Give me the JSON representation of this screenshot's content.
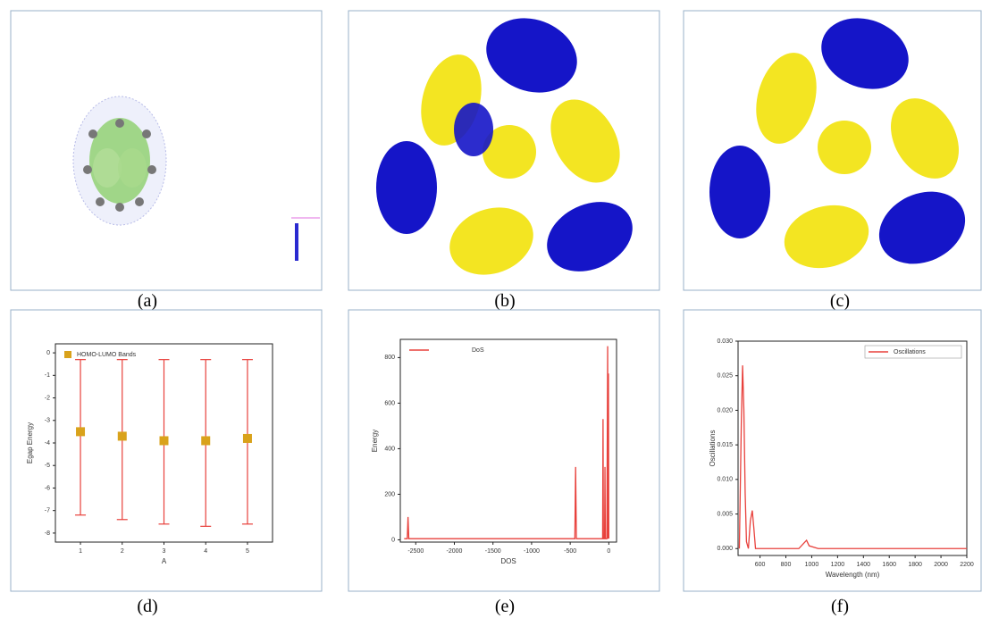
{
  "panel_labels": [
    "(a)",
    "(b)",
    "(c)",
    "(d)",
    "(e)",
    "(f)"
  ],
  "chart_data": [
    {
      "type": "errorbar",
      "xlabel": "A",
      "ylabel": "Egap Energy",
      "x": [
        1,
        2,
        3,
        4,
        5
      ],
      "xlim": [
        0.4,
        5.6
      ],
      "xticks": [
        1,
        2,
        3,
        4,
        5
      ],
      "ylim": [
        -8.4,
        0.4
      ],
      "yticks": [
        0,
        -1,
        -2,
        -3,
        -4,
        -5,
        -6,
        -7,
        -8
      ],
      "legend": "upper left",
      "error_color": "#e8413c",
      "series": [
        {
          "name": "HOMO-LUMO Bands",
          "color": "#d9a21b",
          "values": [
            -3.5,
            -3.7,
            -3.9,
            -3.9,
            -3.8
          ],
          "low": [
            -7.2,
            -7.4,
            -7.6,
            -7.7,
            -7.6
          ],
          "high": [
            -0.3,
            -0.3,
            -0.3,
            -0.3,
            -0.3
          ]
        }
      ]
    },
    {
      "type": "line",
      "xlabel": "DOS",
      "ylabel": "Energy",
      "x": [
        -2650,
        -2610,
        -2600,
        -2590,
        -460,
        -440,
        -430,
        -420,
        -100,
        -80,
        -75,
        -70,
        -55,
        -50,
        -45,
        -25,
        -15,
        -10,
        -5,
        0
      ],
      "xlim": [
        -2700,
        100
      ],
      "xticks": [
        -2500,
        -2000,
        -1500,
        -1000,
        -500,
        0
      ],
      "ylim": [
        -10,
        880
      ],
      "yticks": [
        0,
        200,
        400,
        600,
        800
      ],
      "legend": "upper left",
      "series": [
        {
          "name": "DoS",
          "color": "#e8413c",
          "values": [
            5,
            5,
            100,
            5,
            5,
            5,
            320,
            5,
            5,
            5,
            530,
            5,
            5,
            320,
            5,
            5,
            850,
            5,
            730,
            5
          ]
        }
      ]
    },
    {
      "type": "line",
      "xlabel": "Wavelength (nm)",
      "ylabel": "Oscillations",
      "x": [
        440,
        455,
        465,
        475,
        485,
        495,
        510,
        525,
        540,
        552,
        565,
        580,
        600,
        700,
        900,
        940,
        960,
        980,
        1050,
        2200
      ],
      "xlim": [
        430,
        2200
      ],
      "xticks": [
        600,
        800,
        1000,
        1200,
        1400,
        1600,
        1800,
        2000,
        2200
      ],
      "ylim": [
        -0.001,
        0.03
      ],
      "yticks": [
        {
          "value": 0,
          "label": "0.000"
        },
        {
          "value": 0.005,
          "label": "0.005"
        },
        {
          "value": 0.01,
          "label": "0.010"
        },
        {
          "value": 0.015,
          "label": "0.015"
        },
        {
          "value": 0.02,
          "label": "0.020"
        },
        {
          "value": 0.025,
          "label": "0.025"
        },
        {
          "value": 0.03,
          "label": "0.030"
        }
      ],
      "legend": "upper right",
      "series": [
        {
          "name": "Oscillations",
          "color": "#e8413c",
          "values": [
            0,
            0.018,
            0.0265,
            0.02,
            0.008,
            0.001,
            0,
            0.004,
            0.0055,
            0.003,
            0,
            0,
            0,
            0,
            0,
            0.0008,
            0.0012,
            0.0004,
            0,
            0
          ]
        }
      ]
    }
  ]
}
